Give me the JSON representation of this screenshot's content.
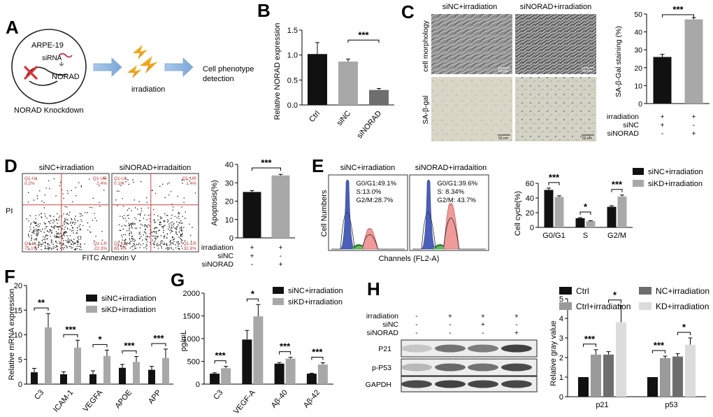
{
  "panelA": {
    "letter": "A",
    "cell_line": "ARPE-19",
    "sirna": "siRNA",
    "norad": "NORAD",
    "knockdown": "NORAD Knockdown",
    "irradiation": "irradiation",
    "phenotype_line1": "Cell phenotype",
    "phenotype_line2": "detection"
  },
  "panelB": {
    "letter": "B",
    "chart_data": {
      "type": "bar",
      "ylabel": "Relative NORAD expression",
      "categories": [
        "Ctrl",
        "siNC",
        "siNORAD"
      ],
      "values": [
        1.02,
        0.87,
        0.3
      ],
      "errors": [
        0.23,
        0.05,
        0.03
      ],
      "ylim": [
        0,
        1.5
      ],
      "yticks": [
        "0.0",
        "0.5",
        "1.0",
        "1.5"
      ],
      "colors": [
        "#111111",
        "#a8a8a8",
        "#6e6e6e"
      ],
      "significance": [
        {
          "between": [
            1,
            2
          ],
          "label": "***"
        }
      ]
    }
  },
  "panelC": {
    "letter": "C",
    "col_titles": [
      "siNC+irradiation",
      "siNORAD+irradiation"
    ],
    "row_labels": [
      "cell morphology",
      "SA-β-gal"
    ],
    "scale_bar": "50 μm",
    "chart_data": {
      "type": "bar",
      "ylabel": "SA-β-Gal staining (%)",
      "values": [
        26,
        47
      ],
      "errors": [
        1.5,
        1.0
      ],
      "ylim": [
        0,
        50
      ],
      "yticks": [
        "0",
        "10",
        "20",
        "30",
        "40",
        "50"
      ],
      "colors": [
        "#111111",
        "#a8a8a8"
      ],
      "significance": [
        {
          "between": [
            0,
            1
          ],
          "label": "***"
        }
      ],
      "conditions": [
        {
          "label": "irradiation",
          "marks": [
            "+",
            "+"
          ]
        },
        {
          "label": "siNC",
          "marks": [
            "+",
            "-"
          ]
        },
        {
          "label": "siNORAD",
          "marks": [
            "-",
            "+"
          ]
        }
      ]
    }
  },
  "panelD": {
    "letter": "D",
    "col_titles": [
      "siNC+irradiation",
      "siNORAD+irradaition"
    ],
    "y_axis_label": "PI",
    "x_axis_label": "FITC Annexin V",
    "quadrants": [
      {
        "ul": "Q1-UL",
        "ul_val": "0.2%",
        "ur": "Q1-UR",
        "ur_val": "2.4%",
        "ll": "Q1-LL",
        "ll_val": "75.1%",
        "lr": "Q1-LR",
        "lr_val": "22.3%"
      },
      {
        "ul": "Q1-UL",
        "ul_val": "0.1%",
        "ur": "Q1-UR",
        "ur_val": "1.4%",
        "ll": "Q1-LL",
        "ll_val": "65.7%",
        "lr": "Q1-LR",
        "lr_val": "32.8%"
      }
    ],
    "chart_data": {
      "type": "bar",
      "ylabel": "Apoptosis(%)",
      "values": [
        25,
        34
      ],
      "errors": [
        0.8,
        0.6
      ],
      "ylim": [
        0,
        40
      ],
      "yticks": [
        "0",
        "10",
        "20",
        "30",
        "40"
      ],
      "colors": [
        "#111111",
        "#a8a8a8"
      ],
      "significance": [
        {
          "between": [
            0,
            1
          ],
          "label": "***"
        }
      ],
      "conditions": [
        {
          "label": "irradiation",
          "marks": [
            "+",
            "+"
          ]
        },
        {
          "label": "siNC",
          "marks": [
            "+",
            "-"
          ]
        },
        {
          "label": "siNORAD",
          "marks": [
            "-",
            "+"
          ]
        }
      ]
    }
  },
  "panelE": {
    "letter": "E",
    "col_titles": [
      "siNC+irradiation",
      "siNORAD+irradaition"
    ],
    "y_axis_label": "Cell Numbers",
    "x_axis_label": "Channels (FL2-A)",
    "stats": [
      [
        "G0/G1:49.1%",
        "S:13.0%",
        "G2/M:28.7%"
      ],
      [
        "G0/G1:39.6%",
        "S:  8.34%",
        "G2/M:  43.7%"
      ]
    ],
    "chart_data": {
      "type": "bar",
      "ylabel": "Cell cycle(%)",
      "categories": [
        "G0/G1",
        "S",
        "G2/M"
      ],
      "series": [
        {
          "name": "siNC+irradiation",
          "values": [
            51,
            12.5,
            28
          ],
          "errors": [
            2.5,
            0.8,
            1.5
          ],
          "color": "#111111"
        },
        {
          "name": "siKD+irradiation",
          "values": [
            41.5,
            8.5,
            42
          ],
          "errors": [
            1.5,
            0.6,
            2.0
          ],
          "color": "#a8a8a8"
        }
      ],
      "ylim": [
        0,
        60
      ],
      "yticks": [
        "0",
        "20",
        "40",
        "60"
      ],
      "significance": [
        "***",
        "*",
        "***"
      ]
    }
  },
  "panelF": {
    "letter": "F",
    "chart_data": {
      "type": "bar",
      "ylabel": "Relative mRNA expression",
      "categories": [
        "C3",
        "ICAM-1",
        "VEGFA",
        "APOE",
        "APP"
      ],
      "series": [
        {
          "name": "siNC+irradiation",
          "values": [
            2.4,
            2.0,
            2.0,
            3.3,
            2.9
          ],
          "errors": [
            0.8,
            0.5,
            0.7,
            0.7,
            0.7
          ],
          "color": "#111111"
        },
        {
          "name": "siKD+irradiation",
          "values": [
            11.5,
            7.4,
            5.7,
            4.5,
            5.3
          ],
          "errors": [
            2.8,
            1.5,
            1.2,
            1.1,
            1.8
          ],
          "color": "#a8a8a8"
        }
      ],
      "ylim": [
        0,
        20
      ],
      "yticks": [
        "0",
        "5",
        "10",
        "15",
        "20"
      ],
      "significance": [
        "**",
        "***",
        "*",
        "***",
        "***"
      ]
    }
  },
  "panelG": {
    "letter": "G",
    "chart_data": {
      "type": "bar",
      "ylabel": "pg/mL",
      "categories": [
        "C3",
        "VEGF-A",
        "Aβ-40",
        "Aβ-42"
      ],
      "series": [
        {
          "name": "siNC+irradiation",
          "values": [
            230,
            980,
            450,
            230
          ],
          "errors": [
            20,
            200,
            25,
            10
          ],
          "color": "#111111"
        },
        {
          "name": "siKD+irradiation",
          "values": [
            350,
            1490,
            560,
            430
          ],
          "errors": [
            40,
            260,
            30,
            40
          ],
          "color": "#a8a8a8"
        }
      ],
      "ylim": [
        0,
        2000
      ],
      "yticks": [
        "0",
        "500",
        "1000",
        "1500",
        "2000"
      ],
      "significance": [
        "***",
        "*",
        "***",
        "***"
      ]
    }
  },
  "panelH": {
    "letter": "H",
    "conditions": [
      {
        "label": "irradiation",
        "marks": [
          "-",
          "+",
          "+",
          "+"
        ]
      },
      {
        "label": "siNC",
        "marks": [
          "-",
          "-",
          "+",
          "-"
        ]
      },
      {
        "label": "siNORAD",
        "marks": [
          "-",
          "-",
          "-",
          "+"
        ]
      }
    ],
    "blot_rows": [
      "P21",
      "p-P53",
      "GAPDH"
    ],
    "chart_data": {
      "type": "bar",
      "ylabel": "Relative gray value",
      "categories": [
        "p21",
        "p53"
      ],
      "series": [
        {
          "name": "Ctrl",
          "values": [
            1.0,
            1.0
          ],
          "errors": [
            0,
            0
          ],
          "color": "#111111"
        },
        {
          "name": "Ctrl+irradiation",
          "values": [
            2.15,
            1.97
          ],
          "errors": [
            0.25,
            0.1
          ],
          "color": "#9a9a9a"
        },
        {
          "name": "NC+irradiation",
          "values": [
            2.15,
            2.05
          ],
          "errors": [
            0.15,
            0.15
          ],
          "color": "#6e6e6e"
        },
        {
          "name": "KD+irradiation",
          "values": [
            3.8,
            2.65
          ],
          "errors": [
            0.85,
            0.35
          ],
          "color": "#dcdcdc"
        }
      ],
      "ylim": [
        0,
        5
      ],
      "yticks": [
        "0",
        "1",
        "2",
        "3",
        "4",
        "5"
      ],
      "significance": [
        {
          "between": [
            0,
            1
          ],
          "label": "***"
        },
        {
          "between": [
            2,
            3
          ],
          "label": "*"
        }
      ]
    }
  }
}
